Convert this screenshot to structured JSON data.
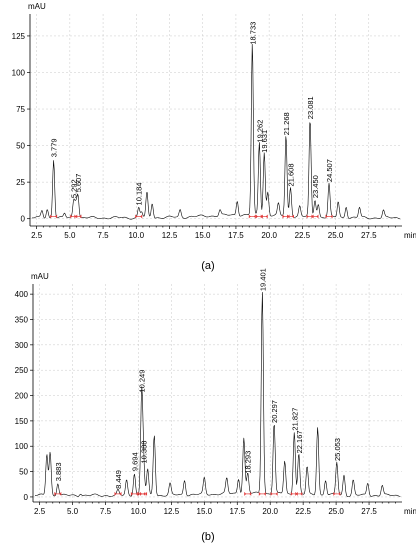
{
  "chart_data": [
    {
      "type": "line",
      "panel_label": "(a)",
      "xlabel": "min",
      "ylabel": "mAU",
      "xlim": [
        2.0,
        30.0
      ],
      "ylim": [
        -5,
        140
      ],
      "xticks": [
        2.5,
        5.0,
        7.5,
        10.0,
        12.5,
        15.0,
        17.5,
        20.0,
        22.5,
        25.0,
        27.5
      ],
      "xtick_labels": [
        "2.5",
        "5.0",
        "7.5",
        "10.0",
        "12.5",
        "15.0",
        "17.5",
        "20.0",
        "22.5",
        "25.0",
        "27.5"
      ],
      "yticks": [
        0,
        25,
        50,
        75,
        100,
        125
      ],
      "ytick_labels": [
        "0",
        "25",
        "50",
        "75",
        "100",
        "125"
      ],
      "grid": true,
      "labeled_peaks": [
        {
          "rt": 3.779,
          "label": "3.779",
          "height": 40
        },
        {
          "rt": 5.292,
          "label": "5.292",
          "height": 12
        },
        {
          "rt": 5.607,
          "label": "5.607",
          "height": 16
        },
        {
          "rt": 10.184,
          "label": "10.184",
          "height": 7
        },
        {
          "rt": 18.733,
          "label": "18.733",
          "height": 117
        },
        {
          "rt": 19.262,
          "label": "19.262",
          "height": 50
        },
        {
          "rt": 19.631,
          "label": "19.631",
          "height": 43
        },
        {
          "rt": 21.268,
          "label": "21.268",
          "height": 55
        },
        {
          "rt": 21.608,
          "label": "21.608",
          "height": 20
        },
        {
          "rt": 23.081,
          "label": "23.081",
          "height": 66
        },
        {
          "rt": 23.45,
          "label": "23.450",
          "height": 12
        },
        {
          "rt": 24.507,
          "label": "24.507",
          "height": 23
        }
      ],
      "unlabeled_peaks": [
        {
          "rt": 2.9,
          "height": 5
        },
        {
          "rt": 3.3,
          "height": 6
        },
        {
          "rt": 4.6,
          "height": 3
        },
        {
          "rt": 5.45,
          "height": 10
        },
        {
          "rt": 10.4,
          "height": 4
        },
        {
          "rt": 10.8,
          "height": 17
        },
        {
          "rt": 11.2,
          "height": 10
        },
        {
          "rt": 13.3,
          "height": 5
        },
        {
          "rt": 16.3,
          "height": 4
        },
        {
          "rt": 17.6,
          "height": 10
        },
        {
          "rt": 19.9,
          "height": 16
        },
        {
          "rt": 20.7,
          "height": 8
        },
        {
          "rt": 22.3,
          "height": 7
        },
        {
          "rt": 23.7,
          "height": 9
        },
        {
          "rt": 25.2,
          "height": 11
        },
        {
          "rt": 25.8,
          "height": 8
        },
        {
          "rt": 26.8,
          "height": 7
        },
        {
          "rt": 28.6,
          "height": 5
        }
      ]
    },
    {
      "type": "line",
      "panel_label": "(b)",
      "xlabel": "min",
      "ylabel": "mAU",
      "xlim": [
        2.0,
        30.0
      ],
      "ylim": [
        -10,
        420
      ],
      "xticks": [
        2.5,
        5.0,
        7.5,
        10.0,
        12.5,
        15.0,
        17.5,
        20.0,
        22.5,
        25.0,
        27.5
      ],
      "xtick_labels": [
        "2.5",
        "5.0",
        "7.5",
        "10.0",
        "12.5",
        "15.0",
        "17.5",
        "20.0",
        "22.5",
        "25.0",
        "27.5"
      ],
      "yticks": [
        0,
        50,
        100,
        150,
        200,
        250,
        300,
        350,
        400
      ],
      "ytick_labels": [
        "0",
        "50",
        "100",
        "150",
        "200",
        "250",
        "300",
        "350",
        "400"
      ],
      "grid": true,
      "labeled_peaks": [
        {
          "rt": 3.883,
          "label": "3.883",
          "height": 25
        },
        {
          "rt": 8.449,
          "label": "8.449",
          "height": 10
        },
        {
          "rt": 9.694,
          "label": "9.694",
          "height": 45
        },
        {
          "rt": 10.249,
          "label": "10.249",
          "height": 200
        },
        {
          "rt": 10.388,
          "label": "10.388",
          "height": 60
        },
        {
          "rt": 18.293,
          "label": "18.293",
          "height": 40
        },
        {
          "rt": 19.401,
          "label": "19.401",
          "height": 400
        },
        {
          "rt": 20.297,
          "label": "20.297",
          "height": 140
        },
        {
          "rt": 21.827,
          "label": "21.827",
          "height": 125
        },
        {
          "rt": 22.167,
          "label": "22.167",
          "height": 80
        },
        {
          "rt": 25.053,
          "label": "25.053",
          "height": 65
        }
      ],
      "unlabeled_peaks": [
        {
          "rt": 3.05,
          "height": 82
        },
        {
          "rt": 3.3,
          "height": 86
        },
        {
          "rt": 5.6,
          "height": 5
        },
        {
          "rt": 9.1,
          "height": 30
        },
        {
          "rt": 10.7,
          "height": 50
        },
        {
          "rt": 11.2,
          "height": 120
        },
        {
          "rt": 12.4,
          "height": 22
        },
        {
          "rt": 13.5,
          "height": 30
        },
        {
          "rt": 15.0,
          "height": 32
        },
        {
          "rt": 16.7,
          "height": 30
        },
        {
          "rt": 17.6,
          "height": 30
        },
        {
          "rt": 18.0,
          "height": 110
        },
        {
          "rt": 21.1,
          "height": 65
        },
        {
          "rt": 22.8,
          "height": 55
        },
        {
          "rt": 23.6,
          "height": 135
        },
        {
          "rt": 24.2,
          "height": 30
        },
        {
          "rt": 25.6,
          "height": 40
        },
        {
          "rt": 26.3,
          "height": 30
        },
        {
          "rt": 27.4,
          "height": 25
        },
        {
          "rt": 28.5,
          "height": 20
        }
      ]
    }
  ]
}
